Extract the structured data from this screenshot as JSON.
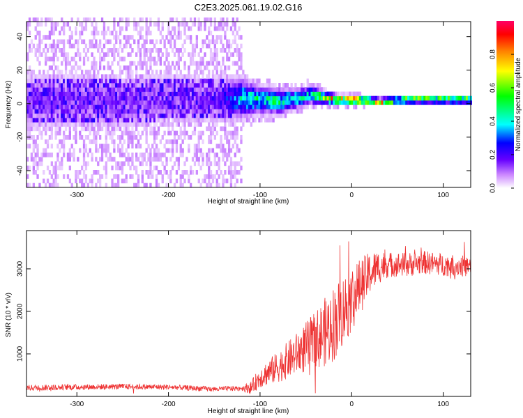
{
  "title": "C2E3.2025.061.19.02.G16",
  "chart_data": [
    {
      "type": "heatmap",
      "name": "spectrogram",
      "xlabel": "Height of straight line (km)",
      "ylabel": "Frequency (Hz)",
      "xlim": [
        -355,
        130
      ],
      "ylim": [
        -50,
        49
      ],
      "xticks": [
        -300,
        -200,
        -100,
        0,
        100
      ],
      "yticks": [
        -40,
        -20,
        0,
        20,
        40
      ],
      "ridge": {
        "description": "dominant signal near 0 Hz",
        "x": [
          -355,
          -300,
          -250,
          -200,
          -150,
          -120,
          -100,
          -80,
          -60,
          -45,
          -30,
          -15,
          0,
          30,
          60,
          90,
          130
        ],
        "center_freq": [
          0,
          1,
          0,
          2,
          1,
          2,
          1,
          0,
          2,
          4,
          2,
          1,
          1,
          0,
          1,
          1,
          1
        ],
        "spread": [
          9,
          9,
          9,
          8,
          8,
          6,
          4,
          4,
          3,
          3,
          2,
          1.5,
          1.5,
          1,
          1,
          1,
          1
        ],
        "peak_amplitude": [
          0.15,
          0.15,
          0.15,
          0.15,
          0.15,
          0.45,
          0.5,
          0.5,
          0.5,
          0.45,
          0.75,
          0.9,
          0.95,
          0.95,
          0.95,
          0.95,
          0.95
        ]
      },
      "noise_region_x": [
        -355,
        -120
      ]
    },
    {
      "type": "colorbar",
      "label": "Normalized spectral amplitude",
      "range": [
        0,
        1
      ],
      "ticks": [
        "0.0",
        "0.2",
        "0.4",
        "0.6",
        "0.8"
      ]
    },
    {
      "type": "line",
      "name": "snr",
      "xlabel": "Height of straight line (km)",
      "ylabel": "SNR (10 * v/v)",
      "xlim": [
        -355,
        130
      ],
      "ylim": [
        0,
        3900
      ],
      "xticks": [
        -300,
        -200,
        -100,
        0,
        100
      ],
      "yticks": [
        1000,
        2000,
        3000
      ],
      "color": "#ee3333",
      "trend": {
        "x": [
          -355,
          -300,
          -250,
          -200,
          -150,
          -110,
          -100,
          -80,
          -60,
          -40,
          -20,
          -10,
          0,
          10,
          20,
          30,
          40,
          60,
          80,
          100,
          130
        ],
        "y": [
          200,
          220,
          230,
          220,
          170,
          200,
          450,
          700,
          1000,
          1300,
          1700,
          2000,
          2300,
          2600,
          2900,
          3050,
          3100,
          3100,
          3150,
          3100,
          3050
        ]
      },
      "noise_amplitude": {
        "x": [
          -355,
          -120,
          -100,
          -60,
          -20,
          0,
          20,
          40,
          130
        ],
        "y": [
          70,
          60,
          250,
          500,
          900,
          800,
          500,
          300,
          250
        ]
      }
    }
  ]
}
